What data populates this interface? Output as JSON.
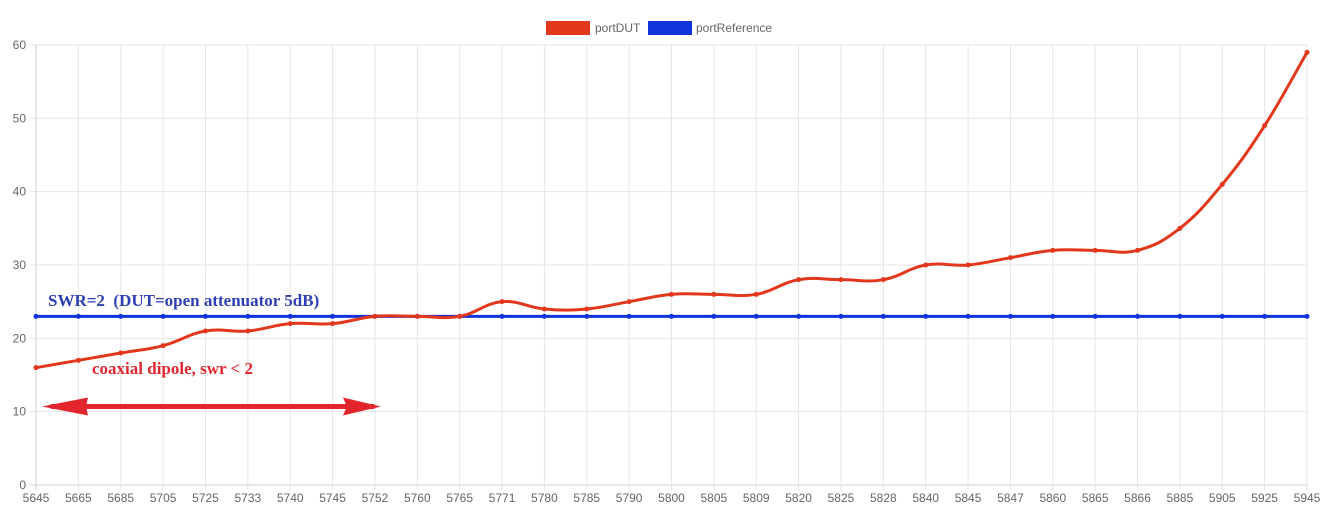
{
  "chart_data": {
    "type": "line",
    "title": "",
    "xlabel": "",
    "ylabel": "",
    "categories": [
      "5645",
      "5665",
      "5685",
      "5705",
      "5725",
      "5733",
      "5740",
      "5745",
      "5752",
      "5760",
      "5765",
      "5771",
      "5780",
      "5785",
      "5790",
      "5800",
      "5805",
      "5809",
      "5820",
      "5825",
      "5828",
      "5840",
      "5845",
      "5847",
      "5860",
      "5865",
      "5866",
      "5885",
      "5905",
      "5925",
      "5945"
    ],
    "ylim": [
      0,
      60
    ],
    "yticks": [
      0,
      10,
      20,
      30,
      40,
      50,
      60
    ],
    "grid": true,
    "legend_position": "top-center",
    "series": [
      {
        "name": "portDUT",
        "color": "#e2371d",
        "values": [
          16,
          17,
          18,
          19,
          21,
          21,
          22,
          22,
          23,
          23,
          23,
          25,
          24,
          24,
          25,
          26,
          26,
          26,
          28,
          28,
          28,
          30,
          30,
          31,
          32,
          32,
          32,
          35,
          41,
          49,
          59
        ]
      },
      {
        "name": "portReference",
        "color": "#1133dd",
        "values": [
          23,
          23,
          23,
          23,
          23,
          23,
          23,
          23,
          23,
          23,
          23,
          23,
          23,
          23,
          23,
          23,
          23,
          23,
          23,
          23,
          23,
          23,
          23,
          23,
          23,
          23,
          23,
          23,
          23,
          23,
          23
        ]
      }
    ],
    "annotations": [
      {
        "text": "SWR=2  (DUT=open attenuator 5dB)",
        "color": "#2e3fb5"
      },
      {
        "text": "coaxial dipole, swr < 2",
        "color": "#e3262e"
      }
    ],
    "range_arrow": {
      "from": "5645",
      "to": "5752",
      "y": 10.7,
      "color": "#e3262e"
    }
  }
}
